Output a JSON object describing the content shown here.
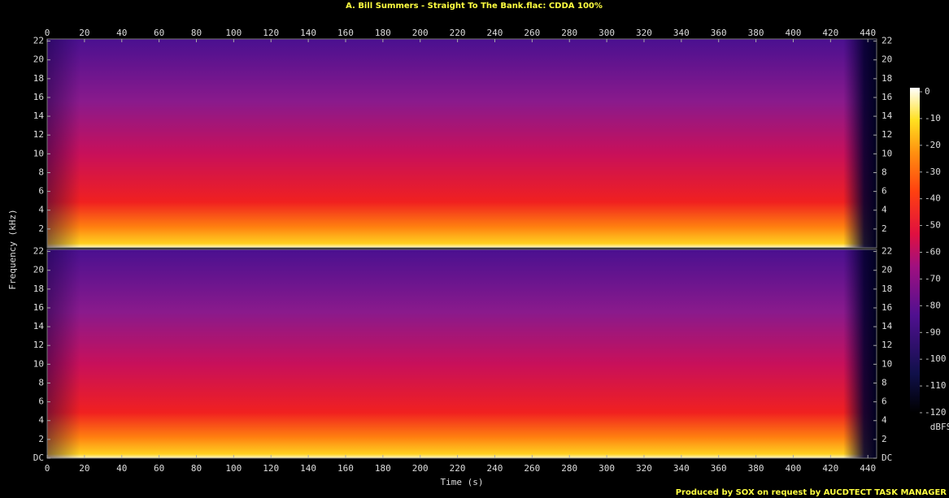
{
  "chart_data": [
    {
      "type": "spectrogram",
      "title": "A. Bill Summers - Straight To The Bank.flac: CDDA 100%",
      "y_label": "Frequency (kHz)",
      "xlim": [
        0,
        444.7
      ],
      "xticks": [
        0,
        20,
        40,
        60,
        80,
        100,
        120,
        140,
        160,
        180,
        200,
        220,
        240,
        260,
        280,
        300,
        320,
        340,
        360,
        380,
        400,
        420,
        440
      ],
      "ylim": [
        0,
        22.05
      ],
      "yticks": [
        2,
        4,
        6,
        8,
        10,
        12,
        14,
        16,
        18,
        20,
        22
      ]
    },
    {
      "type": "spectrogram",
      "x_label": "Time (s)",
      "xlim": [
        0,
        444.7
      ],
      "xticks": [
        0,
        20,
        40,
        60,
        80,
        100,
        120,
        140,
        160,
        180,
        200,
        220,
        240,
        260,
        280,
        300,
        320,
        340,
        360,
        380,
        400,
        420,
        440
      ],
      "ylim": [
        0,
        22.05
      ],
      "yticks": [
        {
          "value": 0,
          "label": "DC"
        },
        2,
        4,
        6,
        8,
        10,
        12,
        14,
        16,
        18,
        20,
        22
      ]
    }
  ],
  "colorbar": {
    "label": "dBFS",
    "lim": [
      -120,
      0
    ],
    "ticks": [
      0,
      -10,
      -20,
      -30,
      -40,
      -50,
      -60,
      -70,
      -80,
      -90,
      -100,
      -110,
      -120
    ]
  },
  "footer": "Produced by SOX on request by AUCDTECT TASK MANAGER"
}
